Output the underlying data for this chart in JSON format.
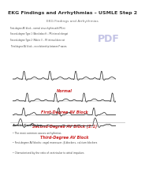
{
  "title_top": "EKG Findings and Arrhythmias – USMLE Step 2",
  "bg_color": "#ffffff",
  "box_bg": "#f8f8f8",
  "box_edge": "#aaaaaa",
  "label_normal": "Normal",
  "label_first": "First-Degree AV Block",
  "label_second": "Second-Degree AV Block (2:1)",
  "label_third": "Third-Degree AV Block",
  "label_color": "#cc2222",
  "ekg_color": "#222222",
  "header_color": "#333333",
  "text_color": "#444444",
  "pdf_color": "#8888cc",
  "small_text": [
    "First-degree AV block – normal sinus rhythm with PR interval >0.2 sec",
    "Second-degree Type 1 (Wenckebach) – PR interval elongates then beat is dropped",
    "Second-degree Type 2 (Mobitz II) – PR interval does not change but regularly",
    "Third-degree AV block – no relationship between P waves and QRS complexes"
  ],
  "bullet_points": [
    "The most common causes arrhythmias",
    "First-degree AV blocks: vagal maneuver, β-blockers, calcium blockers",
    "Characterized by the ratio of ventricular to atrial impulses"
  ]
}
